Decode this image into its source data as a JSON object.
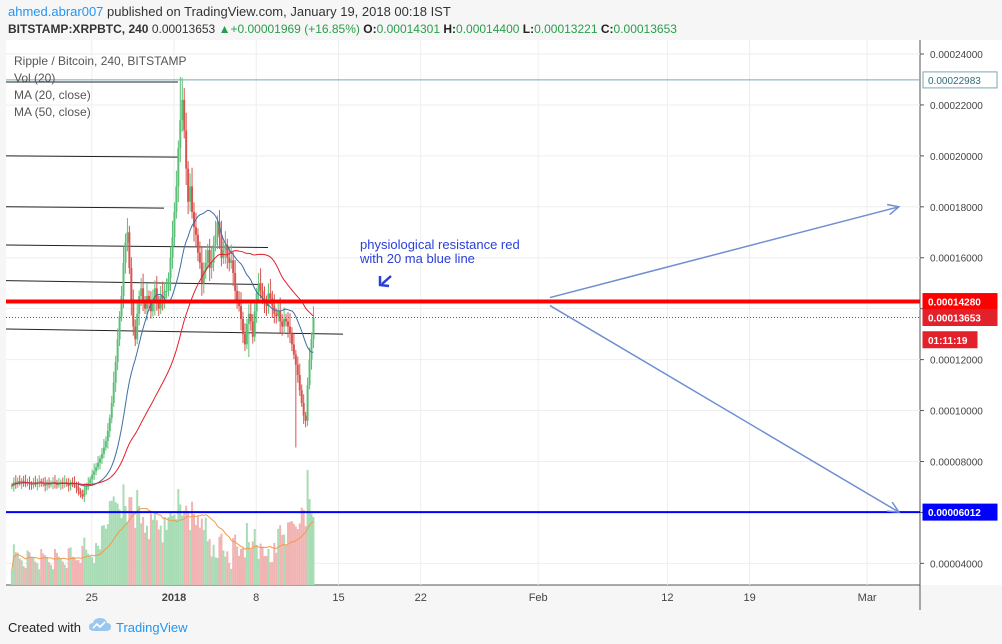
{
  "header": {
    "author": "ahmed.abrar007",
    "published_text": "published on TradingView.com, January 19, 2018 00:18 IST",
    "symbol": "BITSTAMP:XRPBTC, 240",
    "last": "0.00013653",
    "change_arrow": "▲",
    "change": "+0.00001969 (+16.85%)",
    "o_label": "O:",
    "o": "0.00014301",
    "h_label": "H:",
    "h": "0.00014400",
    "l_label": "L:",
    "l": "0.00013221",
    "c_label": "C:",
    "c": "0.00013653"
  },
  "legend": {
    "title": "Ripple / Bitcoin, 240, BITSTAMP",
    "vol": "Vol (20)",
    "ma20": "MA (20, close)",
    "ma50": "MA (50, close)"
  },
  "footer": {
    "created_with": "Created with",
    "brand": "TradingView"
  },
  "colors": {
    "up": "#5bbf77",
    "down": "#d9534f",
    "ma20": "#3b6fa6",
    "ma50": "#e3212a",
    "resistance": "#ff0000",
    "support": "#0000ff",
    "projection": "#6f8fd1",
    "annotation": "#2b3fd6",
    "last_price": "#e3212a"
  },
  "chart_data": {
    "type": "candlestick",
    "title": "Ripple / Bitcoin, 240, BITSTAMP",
    "ylim": [
      3.15e-05,
      0.0002455
    ],
    "y_ticks": [
      "0.00004000",
      "0.00006000",
      "0.00008000",
      "0.00010000",
      "0.00012000",
      "0.00014000",
      "0.00016000",
      "0.00018000",
      "0.00020000",
      "0.00022000",
      "0.00024000"
    ],
    "y_tick_values": [
      4e-05,
      6e-05,
      8e-05,
      0.0001,
      0.00012,
      0.00014,
      0.00016,
      0.00018,
      0.0002,
      0.00022,
      0.00024
    ],
    "x_ticks": [
      "25",
      "2018",
      "8",
      "15",
      "22",
      "Feb",
      "12",
      "19",
      "Mar"
    ],
    "x_tick_days": [
      -7,
      0,
      7,
      14,
      21,
      31,
      42,
      49,
      59
    ],
    "x_day_range": [
      -14.3,
      63.5
    ],
    "price_labels": [
      {
        "text": "0.00022983",
        "value": 0.00022983,
        "style": "line-teal"
      },
      {
        "text": "0.00014280",
        "value": 0.0001428,
        "style": "resistance"
      },
      {
        "text": "0.00013653",
        "value": 0.00013653,
        "style": "last"
      },
      {
        "text": "01:11:19",
        "value": 0.0001265,
        "style": "timer"
      },
      {
        "text": "0.00006012",
        "value": 6.012e-05,
        "style": "support"
      }
    ],
    "resistance_level": 0.0001428,
    "support_level": 6.012e-05,
    "top_line_level": 0.00022983,
    "candle_start_day": -13.8,
    "candle_step_days": 0.1667,
    "closes": [
      7.05e-05,
      7.18e-05,
      7.12e-05,
      7.22e-05,
      7.16e-05,
      7.24e-05,
      7.2e-05,
      7.14e-05,
      7.18e-05,
      7.12e-05,
      7.08e-05,
      7.16e-05,
      7.1e-05,
      7.18e-05,
      7.22e-05,
      7.16e-05,
      7.12e-05,
      7.06e-05,
      7.14e-05,
      7.09e-05,
      7.15e-05,
      7.19e-05,
      7.13e-05,
      7.08e-05,
      7.12e-05,
      7.18e-05,
      7.12e-05,
      7.18e-05,
      7.12e-05,
      7.05e-05,
      7.18e-05,
      7.14e-05,
      7.06e-05,
      6.98e-05,
      6.85e-05,
      6.72e-05,
      6.62e-05,
      6.88e-05,
      7.02e-05,
      7.15e-05,
      7.3e-05,
      7.48e-05,
      7.62e-05,
      7.78e-05,
      7.95e-05,
      8.12e-05,
      8.3e-05,
      8.55e-05,
      8.8e-05,
      9.2e-05,
      9.7e-05,
      0.000103,
      0.000111,
      0.000119,
      0.000128,
      0.000137,
      0.000145,
      0.000158,
      0.000166,
      0.00017,
      0.000156,
      0.000142,
      0.000133,
      0.000128,
      0.000138,
      0.000145,
      0.000148,
      0.000142,
      0.00014,
      0.000145,
      0.000143,
      0.000139,
      0.000142,
      0.000148,
      0.000143,
      0.00014,
      0.000145,
      0.000144,
      0.000147,
      0.000147,
      0.000152,
      0.00016,
      0.000168,
      0.000178,
      0.000188,
      0.000203,
      0.000214,
      0.000222,
      0.00021,
      0.000195,
      0.000182,
      0.000188,
      0.000178,
      0.000172,
      0.000169,
      0.000162,
      0.000158,
      0.00015,
      0.000155,
      0.000158,
      0.000163,
      0.000156,
      0.000158,
      0.000165,
      0.000169,
      0.000174,
      0.000168,
      0.00016,
      0.000163,
      0.000165,
      0.00016,
      0.000158,
      0.000159,
      0.000154,
      0.000147,
      0.000143,
      0.000141,
      0.000136,
      0.00013,
      0.000126,
      0.000134,
      0.000138,
      0.000135,
      0.000129,
      0.000139,
      0.000146,
      0.00015,
      0.000147,
      0.000144,
      0.000143,
      0.000141,
      0.000146,
      0.000144,
      0.000141,
      0.000138,
      0.000137,
      0.000139,
      0.000135,
      0.000133,
      0.000136,
      0.000135,
      0.000133,
      0.00013,
      0.000126,
      0.000122,
      0.000118,
      0.000114,
      0.000108,
      0.000103,
      9.8e-05,
      9.6e-05,
      0.00011,
      0.00012,
      0.000128,
      0.0001365
    ]
  }
}
